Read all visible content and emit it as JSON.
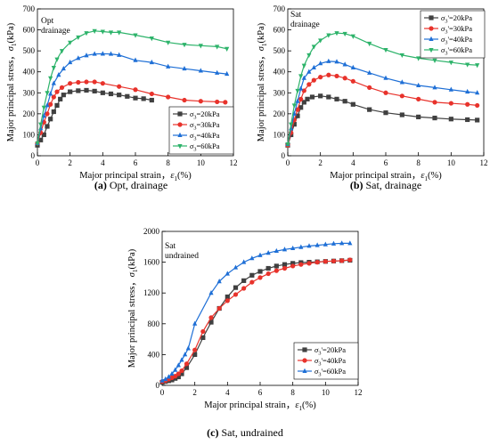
{
  "chart_data": [
    {
      "type": "line",
      "panel_label": "(a)",
      "caption": "Opt, drainage",
      "annotation": [
        "Opt",
        "drainage"
      ],
      "xlabel": "Major principal strain，ε1(%)",
      "ylabel": "Major principal stress，σ1(kPa)",
      "xlim": [
        0,
        12
      ],
      "ylim": [
        0,
        700
      ],
      "xticks": [
        0,
        2,
        4,
        6,
        8,
        10,
        12
      ],
      "yticks": [
        0,
        100,
        200,
        300,
        400,
        500,
        600,
        700
      ],
      "legend_position": "bottom-right",
      "grid": false,
      "series": [
        {
          "name": "σ3=20kPa",
          "color": "#404040",
          "marker": "square",
          "x": [
            0,
            0.2,
            0.4,
            0.6,
            0.8,
            1.0,
            1.2,
            1.4,
            1.6,
            2.0,
            2.5,
            3.0,
            3.5,
            4.0,
            4.5,
            5.0,
            5.5,
            6.0,
            6.5,
            7.0
          ],
          "y": [
            50,
            75,
            100,
            140,
            175,
            210,
            240,
            270,
            290,
            305,
            310,
            312,
            308,
            300,
            295,
            290,
            283,
            275,
            272,
            265
          ]
        },
        {
          "name": "σ3=30kPa",
          "color": "#e8322b",
          "marker": "circle",
          "x": [
            0,
            0.2,
            0.4,
            0.6,
            0.8,
            1.0,
            1.2,
            1.5,
            2.0,
            2.5,
            3.0,
            3.5,
            4.0,
            5.0,
            6.0,
            7.0,
            8.0,
            9.0,
            10.0,
            11.0,
            11.5
          ],
          "y": [
            60,
            110,
            160,
            200,
            245,
            280,
            305,
            325,
            345,
            350,
            352,
            352,
            345,
            330,
            315,
            295,
            280,
            265,
            260,
            257,
            255
          ]
        },
        {
          "name": "σ3=40kPa",
          "color": "#1e6fd6",
          "marker": "triangle",
          "x": [
            0,
            0.2,
            0.4,
            0.6,
            0.8,
            1.0,
            1.3,
            1.6,
            2.0,
            2.5,
            3.0,
            3.5,
            4.0,
            4.5,
            5.0,
            6.0,
            7.0,
            8.0,
            9.0,
            10.0,
            11.0,
            11.6
          ],
          "y": [
            60,
            130,
            190,
            240,
            295,
            345,
            385,
            415,
            445,
            465,
            478,
            485,
            486,
            485,
            480,
            455,
            445,
            425,
            415,
            405,
            395,
            390
          ]
        },
        {
          "name": "σ3=60kPa",
          "color": "#2db36a",
          "marker": "down-triangle",
          "x": [
            0,
            0.2,
            0.4,
            0.6,
            0.8,
            1.0,
            1.2,
            1.5,
            2.0,
            2.5,
            3.0,
            3.5,
            4.0,
            4.5,
            5.0,
            6.0,
            7.0,
            8.0,
            9.0,
            10.0,
            11.0,
            11.6
          ],
          "y": [
            60,
            150,
            230,
            300,
            370,
            420,
            460,
            500,
            540,
            565,
            585,
            595,
            592,
            588,
            588,
            575,
            560,
            540,
            530,
            525,
            520,
            510
          ]
        }
      ]
    },
    {
      "type": "line",
      "panel_label": "(b)",
      "caption": "Sat, drainage",
      "annotation": [
        "Sat",
        "drainage"
      ],
      "xlabel": "Major principal strain，ε1(%)",
      "ylabel": "Major principal stress，σ1(kPa)",
      "xlim": [
        0,
        12
      ],
      "ylim": [
        0,
        700
      ],
      "xticks": [
        0,
        2,
        4,
        6,
        8,
        10,
        12
      ],
      "yticks": [
        0,
        100,
        200,
        300,
        400,
        500,
        600,
        700
      ],
      "legend_position": "top-right",
      "grid": false,
      "series": [
        {
          "name": "σ3'=20kPa",
          "color": "#404040",
          "marker": "square",
          "x": [
            0,
            0.2,
            0.4,
            0.6,
            0.8,
            1.0,
            1.2,
            1.5,
            2.0,
            2.5,
            3.0,
            3.5,
            4.0,
            5.0,
            6.0,
            7.0,
            8.0,
            9.0,
            10.0,
            11.0,
            11.6
          ],
          "y": [
            50,
            100,
            150,
            190,
            230,
            255,
            270,
            280,
            285,
            280,
            270,
            260,
            245,
            220,
            205,
            195,
            185,
            180,
            175,
            172,
            170
          ]
        },
        {
          "name": "σ3'=30kPa",
          "color": "#e8322b",
          "marker": "circle",
          "x": [
            0,
            0.2,
            0.4,
            0.6,
            0.8,
            1.0,
            1.3,
            1.6,
            2.0,
            2.5,
            3.0,
            3.5,
            4.0,
            5.0,
            6.0,
            7.0,
            8.0,
            9.0,
            10.0,
            11.0,
            11.6
          ],
          "y": [
            50,
            110,
            170,
            220,
            270,
            310,
            340,
            360,
            375,
            385,
            380,
            370,
            355,
            325,
            300,
            285,
            270,
            255,
            250,
            245,
            240
          ]
        },
        {
          "name": "σ3'=40kPa",
          "color": "#1e6fd6",
          "marker": "triangle",
          "x": [
            0,
            0.2,
            0.4,
            0.6,
            0.8,
            1.0,
            1.3,
            1.6,
            2.0,
            2.5,
            3.0,
            3.5,
            4.0,
            5.0,
            6.0,
            7.0,
            8.0,
            9.0,
            10.0,
            11.0,
            11.6
          ],
          "y": [
            55,
            130,
            200,
            260,
            320,
            370,
            400,
            420,
            440,
            450,
            448,
            435,
            420,
            395,
            370,
            350,
            335,
            325,
            315,
            305,
            300
          ]
        },
        {
          "name": "σ3'=60kPa",
          "color": "#2db36a",
          "marker": "down-triangle",
          "x": [
            0,
            0.2,
            0.4,
            0.6,
            0.8,
            1.0,
            1.3,
            1.6,
            2.0,
            2.5,
            3.0,
            3.5,
            4.0,
            5.0,
            6.0,
            7.0,
            8.0,
            9.0,
            10.0,
            11.0,
            11.6
          ],
          "y": [
            55,
            150,
            240,
            310,
            380,
            430,
            480,
            520,
            550,
            575,
            585,
            582,
            570,
            535,
            505,
            480,
            465,
            455,
            445,
            435,
            432
          ]
        }
      ]
    },
    {
      "type": "line",
      "panel_label": "(c)",
      "caption": "Sat, undrained",
      "annotation": [
        "Sat",
        "undrained"
      ],
      "xlabel": "Major principal strain，ε1(%)",
      "ylabel": "Major principal stress，σ1(kPa)",
      "xlim": [
        0,
        12
      ],
      "ylim": [
        0,
        2000
      ],
      "xticks": [
        0,
        2,
        4,
        6,
        8,
        10,
        12
      ],
      "yticks": [
        0,
        400,
        800,
        1200,
        1600,
        2000
      ],
      "legend_position": "bottom-right",
      "grid": false,
      "series": [
        {
          "name": "σ3'=20kPa",
          "color": "#404040",
          "marker": "square",
          "x": [
            0,
            0.2,
            0.4,
            0.6,
            0.8,
            1.0,
            1.2,
            1.5,
            2.0,
            2.5,
            3.0,
            3.5,
            4.0,
            4.5,
            5.0,
            5.5,
            6.0,
            6.5,
            7.0,
            7.5,
            8.0,
            8.5,
            9.0,
            9.5,
            10.0,
            10.5,
            11.0,
            11.5
          ],
          "y": [
            40,
            50,
            60,
            70,
            90,
            110,
            150,
            230,
            400,
            620,
            820,
            1000,
            1150,
            1270,
            1360,
            1430,
            1480,
            1520,
            1550,
            1570,
            1585,
            1595,
            1600,
            1605,
            1610,
            1615,
            1620,
            1625
          ]
        },
        {
          "name": "σ3'=40kPa",
          "color": "#e8322b",
          "marker": "circle",
          "x": [
            0,
            0.2,
            0.4,
            0.6,
            0.8,
            1.0,
            1.2,
            1.5,
            2.0,
            2.5,
            3.0,
            3.5,
            4.0,
            4.5,
            5.0,
            5.5,
            6.0,
            6.5,
            7.0,
            7.5,
            8.0,
            8.5,
            9.0,
            9.5,
            10.0,
            10.5,
            11.0,
            11.5
          ],
          "y": [
            50,
            60,
            80,
            100,
            120,
            150,
            190,
            280,
            460,
            700,
            880,
            1000,
            1100,
            1180,
            1260,
            1340,
            1400,
            1450,
            1490,
            1520,
            1550,
            1570,
            1585,
            1600,
            1610,
            1615,
            1620,
            1630
          ]
        },
        {
          "name": "σ3'=60kPa",
          "color": "#1e6fd6",
          "marker": "triangle",
          "x": [
            0,
            0.2,
            0.4,
            0.6,
            0.8,
            1.0,
            1.2,
            1.4,
            1.6,
            2.0,
            3.0,
            3.5,
            4.0,
            4.5,
            5.0,
            5.5,
            6.0,
            6.5,
            7.0,
            7.5,
            8.0,
            8.5,
            9.0,
            9.5,
            10.0,
            10.5,
            11.0,
            11.5
          ],
          "y": [
            60,
            80,
            110,
            150,
            200,
            260,
            330,
            400,
            480,
            800,
            1200,
            1350,
            1450,
            1530,
            1600,
            1650,
            1690,
            1720,
            1745,
            1765,
            1780,
            1795,
            1810,
            1820,
            1830,
            1840,
            1845,
            1845
          ]
        }
      ]
    }
  ]
}
